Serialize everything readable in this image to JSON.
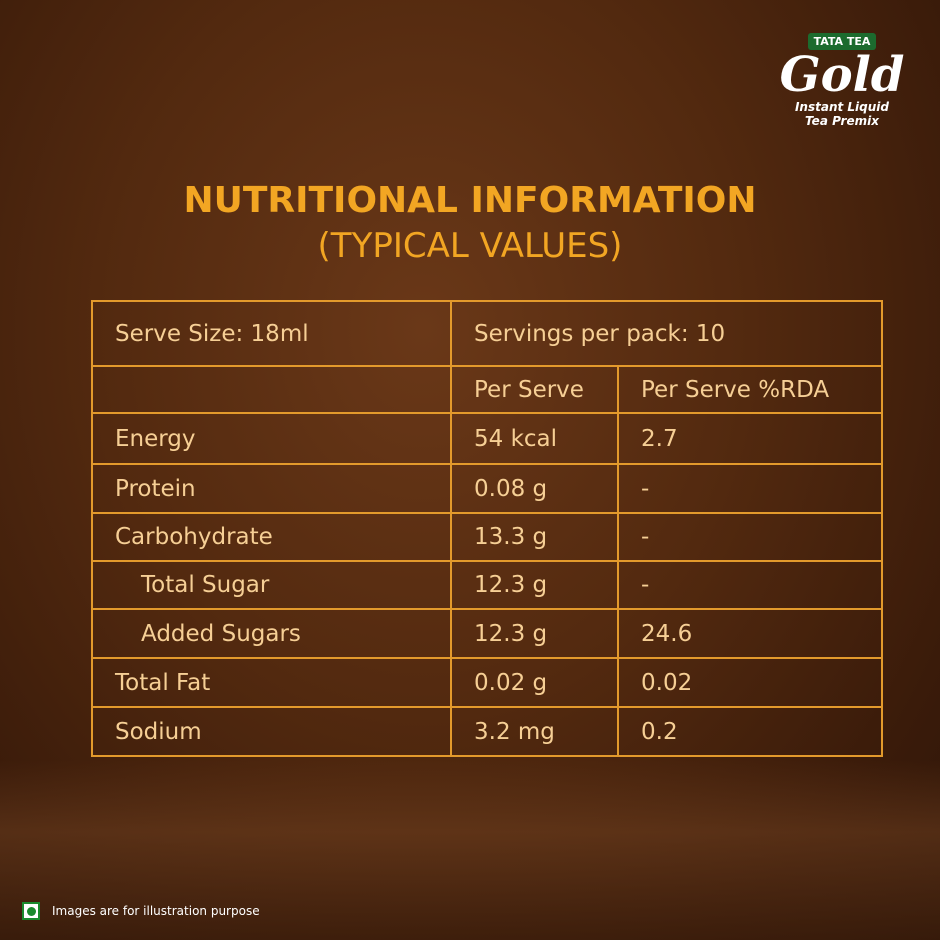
{
  "brand": {
    "maker": "TATA TEA",
    "name": "Gold",
    "line1": "Instant Liquid",
    "line2": "Tea Premix"
  },
  "header": {
    "title": "NUTRITIONAL INFORMATION",
    "subtitle": "(TYPICAL VALUES)"
  },
  "table": {
    "serve_size": "Serve Size: 18ml",
    "servings": "Servings per pack: 10",
    "columns": [
      "Per Serve",
      "Per Serve %RDA"
    ],
    "rows": [
      [
        "Energy",
        "54 kcal",
        "2.7"
      ],
      [
        "Protein",
        "0.08 g",
        "-"
      ],
      [
        "Carbohydrate",
        "13.3 g",
        "-"
      ],
      [
        "Total Sugar",
        "12.3 g",
        "-"
      ],
      [
        "Added Sugars",
        "12.3 g",
        "24.6"
      ],
      [
        "Total Fat",
        "0.02 g",
        "0.02"
      ],
      [
        "Sodium",
        "3.2 mg",
        "0.2"
      ]
    ]
  },
  "footer": {
    "note": "Images are for illustration purpose"
  }
}
